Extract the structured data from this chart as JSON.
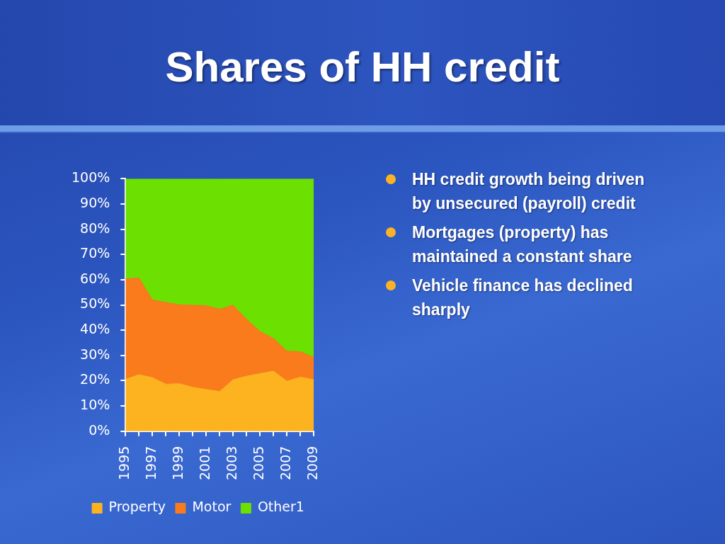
{
  "chart_data": {
    "type": "area",
    "title": "Shares of HH credit",
    "categories": [
      "1995",
      null,
      "1997",
      null,
      "1999",
      null,
      "2001",
      null,
      "2003",
      null,
      "2005",
      null,
      "2007",
      null,
      "2009"
    ],
    "series": [
      {
        "name": "Property",
        "color": "#fdb31f",
        "values": [
          20.5,
          22.4,
          21.2,
          18.6,
          18.8,
          17.4,
          16.5,
          15.7,
          20.4,
          21.8,
          22.8,
          23.8,
          19.8,
          21.4,
          20.4
        ]
      },
      {
        "name": "Motor",
        "color": "#f97b1c",
        "values": [
          39.8,
          38.3,
          30.8,
          32.4,
          31.3,
          32.5,
          33.2,
          32.6,
          29.5,
          22.5,
          16.7,
          12.9,
          11.9,
          10.1,
          8.8
        ]
      },
      {
        "name": "Other1",
        "color": "#6ce000",
        "values": [
          39.7,
          39.3,
          48.0,
          49.0,
          49.9,
          50.1,
          50.3,
          51.7,
          50.1,
          55.7,
          60.5,
          63.3,
          68.3,
          68.5,
          70.8
        ]
      }
    ],
    "stacked": true,
    "ylim": [
      0,
      100
    ],
    "yticks": [
      {
        "value": 0,
        "label": "0%"
      },
      {
        "value": 10,
        "label": "10%"
      },
      {
        "value": 20,
        "label": "20%"
      },
      {
        "value": 30,
        "label": "30%"
      },
      {
        "value": 40,
        "label": "40%"
      },
      {
        "value": 50,
        "label": "50%"
      },
      {
        "value": 60,
        "label": "60%"
      },
      {
        "value": 70,
        "label": "70%"
      },
      {
        "value": 80,
        "label": "80%"
      },
      {
        "value": 90,
        "label": "90%"
      },
      {
        "value": 100,
        "label": "100%"
      }
    ],
    "grid": false,
    "legend": "bottom",
    "annotations": [
      "HH credit growth being driven by unsecured (payroll) credit",
      "Mortgages (property) has maintained a constant share",
      "Vehicle finance has declined sharply"
    ]
  }
}
